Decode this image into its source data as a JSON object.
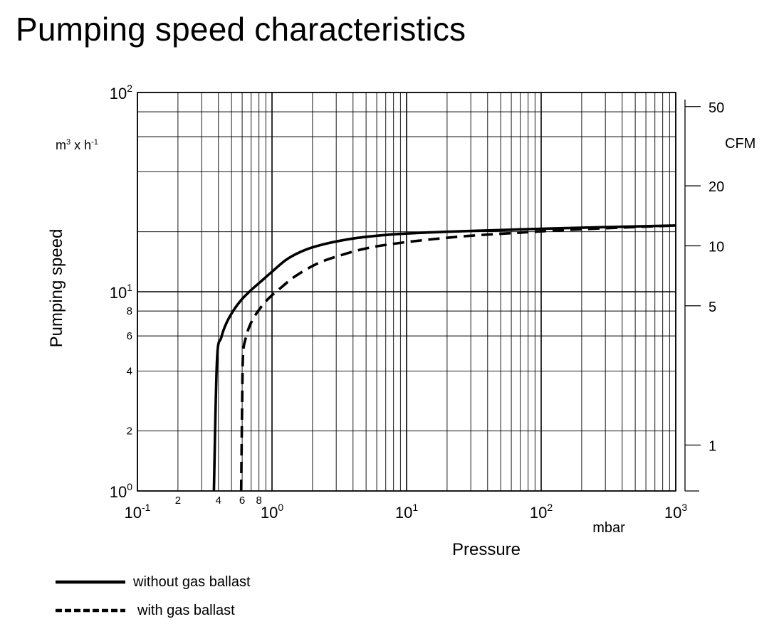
{
  "title": "Pumping speed characteristics",
  "chart_data": {
    "type": "line",
    "title": "Pumping speed characteristics",
    "xlabel": "Pressure",
    "x_unit": "mbar",
    "ylabel": "Pumping speed",
    "y_unit_base": "m",
    "y_unit_exp": "3",
    "y_unit_mid": " x h",
    "y_unit_exp2": "-1",
    "y2label": "CFM",
    "x_scale": "log",
    "y_scale": "log",
    "xlim": [
      0.1,
      1000
    ],
    "ylim": [
      1,
      100
    ],
    "x_major_ticks": [
      {
        "base": "10",
        "exp": "-1",
        "value": 0.1
      },
      {
        "base": "10",
        "exp": "0",
        "value": 1
      },
      {
        "base": "10",
        "exp": "1",
        "value": 10
      },
      {
        "base": "10",
        "exp": "2",
        "value": 100
      },
      {
        "base": "10",
        "exp": "3",
        "value": 1000
      }
    ],
    "x_minor_labels": [
      {
        "label": "2",
        "value": 0.2
      },
      {
        "label": "4",
        "value": 0.4
      },
      {
        "label": "6",
        "value": 0.6
      },
      {
        "label": "8",
        "value": 0.8
      }
    ],
    "y_major_ticks": [
      {
        "base": "10",
        "exp": "0",
        "value": 1
      },
      {
        "base": "10",
        "exp": "1",
        "value": 10
      },
      {
        "base": "10",
        "exp": "2",
        "value": 100
      }
    ],
    "y_minor_labels": [
      {
        "label": "2",
        "value": 2
      },
      {
        "label": "4",
        "value": 4
      },
      {
        "label": "6",
        "value": 6
      },
      {
        "label": "8",
        "value": 8
      }
    ],
    "y2_ticks": [
      {
        "label": "1",
        "value": 1.7
      },
      {
        "label": "5",
        "value": 8.5
      },
      {
        "label": "10",
        "value": 17
      },
      {
        "label": "20",
        "value": 34
      },
      {
        "label": "50",
        "value": 85
      }
    ],
    "series": [
      {
        "name": "without gas ballast",
        "style": "solid",
        "x": [
          0.37,
          0.39,
          0.42,
          0.46,
          0.52,
          0.6,
          0.7,
          0.82,
          1.0,
          1.3,
          1.8,
          2.6,
          4,
          6,
          10,
          20,
          50,
          100,
          300,
          1000
        ],
        "y": [
          1.0,
          4.5,
          5.9,
          7.0,
          8.1,
          9.2,
          10.2,
          11.2,
          12.6,
          14.6,
          16.3,
          17.5,
          18.5,
          19.1,
          19.6,
          20.0,
          20.4,
          20.7,
          21.1,
          21.5
        ]
      },
      {
        "name": "with gas ballast",
        "style": "dashed",
        "x": [
          0.59,
          0.6,
          0.61,
          0.64,
          0.68,
          0.74,
          0.82,
          0.95,
          1.15,
          1.5,
          2.2,
          3.3,
          5,
          8,
          15,
          30,
          70,
          150,
          400,
          1000
        ],
        "y": [
          1.0,
          2.8,
          4.9,
          5.9,
          6.7,
          7.5,
          8.3,
          9.3,
          10.4,
          12.0,
          13.9,
          15.3,
          16.5,
          17.4,
          18.3,
          19.1,
          19.8,
          20.4,
          21.0,
          21.5
        ]
      }
    ],
    "legend": [
      {
        "name": "without gas ballast",
        "style": "solid"
      },
      {
        "name": "with gas ballast",
        "style": "dashed"
      }
    ],
    "grid": true
  }
}
